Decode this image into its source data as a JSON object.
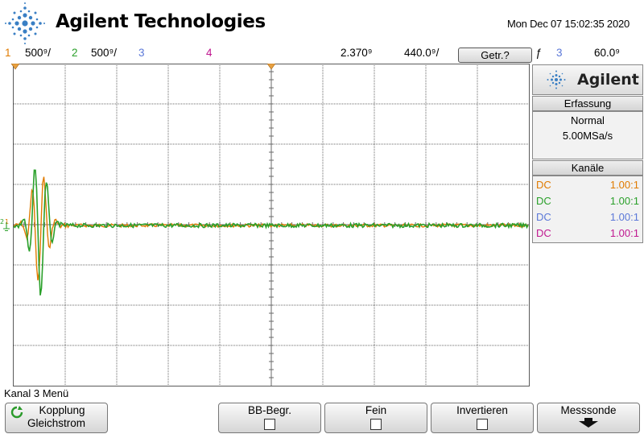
{
  "header": {
    "brand": "Agilent Technologies",
    "clock": "Mon Dec 07 15:02:35 2020"
  },
  "channel_bar": {
    "ch1_num": "1",
    "ch1_scale": "500⁹/",
    "ch2_num": "2",
    "ch2_scale": "500⁹/",
    "ch3_num": "3",
    "ch4_num": "4",
    "time_delay": "2.370⁹",
    "time_scale": "440.0⁹/",
    "stop_button": "Getr.?",
    "trigger_symbol": "ƒ",
    "trigger_source": "3",
    "trigger_level": "60.0⁹",
    "colors": {
      "ch1": "#e07b00",
      "ch2": "#2aa02a",
      "ch3": "#5b78d8",
      "ch4": "#c01890"
    }
  },
  "panel": {
    "logo_text": "Agilent",
    "acq_title": "Erfassung",
    "acq_mode": "Normal",
    "acq_rate": "5.00MSa/s",
    "channels_title": "Kanäle",
    "channels": [
      {
        "coupling": "DC",
        "ratio": "1.00:1",
        "color": "#e07b00"
      },
      {
        "coupling": "DC",
        "ratio": "1.00:1",
        "color": "#2aa02a"
      },
      {
        "coupling": "DC",
        "ratio": "1.00:1",
        "color": "#5b78d8"
      },
      {
        "coupling": "DC",
        "ratio": "1.00:1",
        "color": "#c01890"
      }
    ]
  },
  "softkeys": {
    "menu_title": "Kanal 3 Menü",
    "coupling_label": "Kopplung",
    "coupling_value": "Gleichstrom",
    "bw_limit": "BB-Begr.",
    "fine": "Fein",
    "invert": "Invertieren",
    "probe": "Messsonde"
  },
  "markers": {
    "ground_marker_ch1": "1",
    "ground_marker_ch2": "2"
  }
}
